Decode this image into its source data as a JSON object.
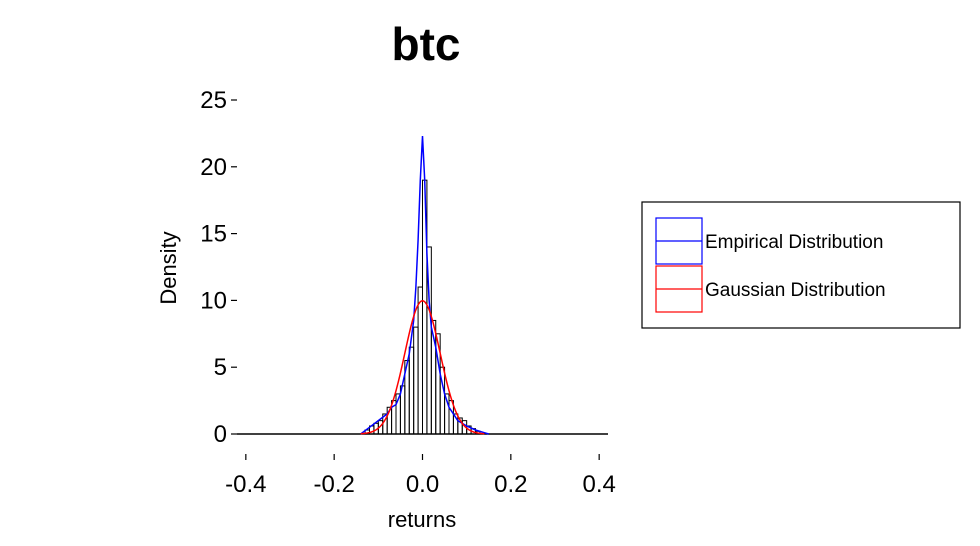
{
  "chart_data": {
    "type": "histogram",
    "title": "btc",
    "xlabel": "returns",
    "ylabel": "Density",
    "xlim": [
      -0.42,
      0.42
    ],
    "ylim": [
      0,
      25
    ],
    "x_ticks": [
      -0.4,
      -0.2,
      0.0,
      0.2,
      0.4
    ],
    "x_tick_labels": [
      "-0.4",
      "-0.2",
      "0.0",
      "0.2",
      "0.4"
    ],
    "y_ticks": [
      0,
      5,
      10,
      15,
      20,
      25
    ],
    "y_tick_labels": [
      "0",
      "5",
      "10",
      "15",
      "20",
      "25"
    ],
    "grid": false,
    "legend_position": "right",
    "histogram": {
      "bin_width": 0.01,
      "bin_starts": [
        -0.13,
        -0.12,
        -0.11,
        -0.1,
        -0.09,
        -0.08,
        -0.07,
        -0.06,
        -0.05,
        -0.04,
        -0.03,
        -0.02,
        -0.01,
        0.0,
        0.01,
        0.02,
        0.03,
        0.04,
        0.05,
        0.06,
        0.07,
        0.08,
        0.09,
        0.1,
        0.11,
        0.12
      ],
      "densities": [
        0.3,
        0.6,
        0.8,
        1.0,
        1.5,
        2.0,
        2.5,
        3.0,
        3.6,
        5.5,
        6.5,
        8.0,
        11.0,
        19.0,
        14.0,
        8.5,
        7.5,
        5.0,
        3.0,
        2.5,
        1.5,
        1.2,
        1.0,
        0.6,
        0.4,
        0.2
      ],
      "color": "#000000"
    },
    "series": [
      {
        "name": "Empirical Distribution",
        "color": "#0000ff",
        "x": [
          -0.14,
          -0.12,
          -0.1,
          -0.08,
          -0.07,
          -0.06,
          -0.05,
          -0.04,
          -0.03,
          -0.02,
          -0.015,
          -0.01,
          -0.005,
          0.0,
          0.005,
          0.01,
          0.015,
          0.02,
          0.03,
          0.04,
          0.05,
          0.06,
          0.07,
          0.08,
          0.1,
          0.12,
          0.14,
          0.15
        ],
        "y": [
          0.0,
          0.5,
          1.0,
          1.5,
          2.0,
          2.2,
          3.0,
          4.5,
          6.0,
          8.5,
          11.0,
          14.5,
          19.0,
          22.3,
          19.0,
          13.5,
          10.0,
          8.0,
          6.5,
          4.5,
          3.0,
          2.0,
          1.5,
          1.0,
          0.6,
          0.3,
          0.1,
          0.0
        ]
      },
      {
        "name": "Gaussian Distribution",
        "color": "#ff0000",
        "mean": 0.0,
        "sd": 0.04,
        "x_range": [
          -0.14,
          0.14
        ]
      }
    ]
  }
}
